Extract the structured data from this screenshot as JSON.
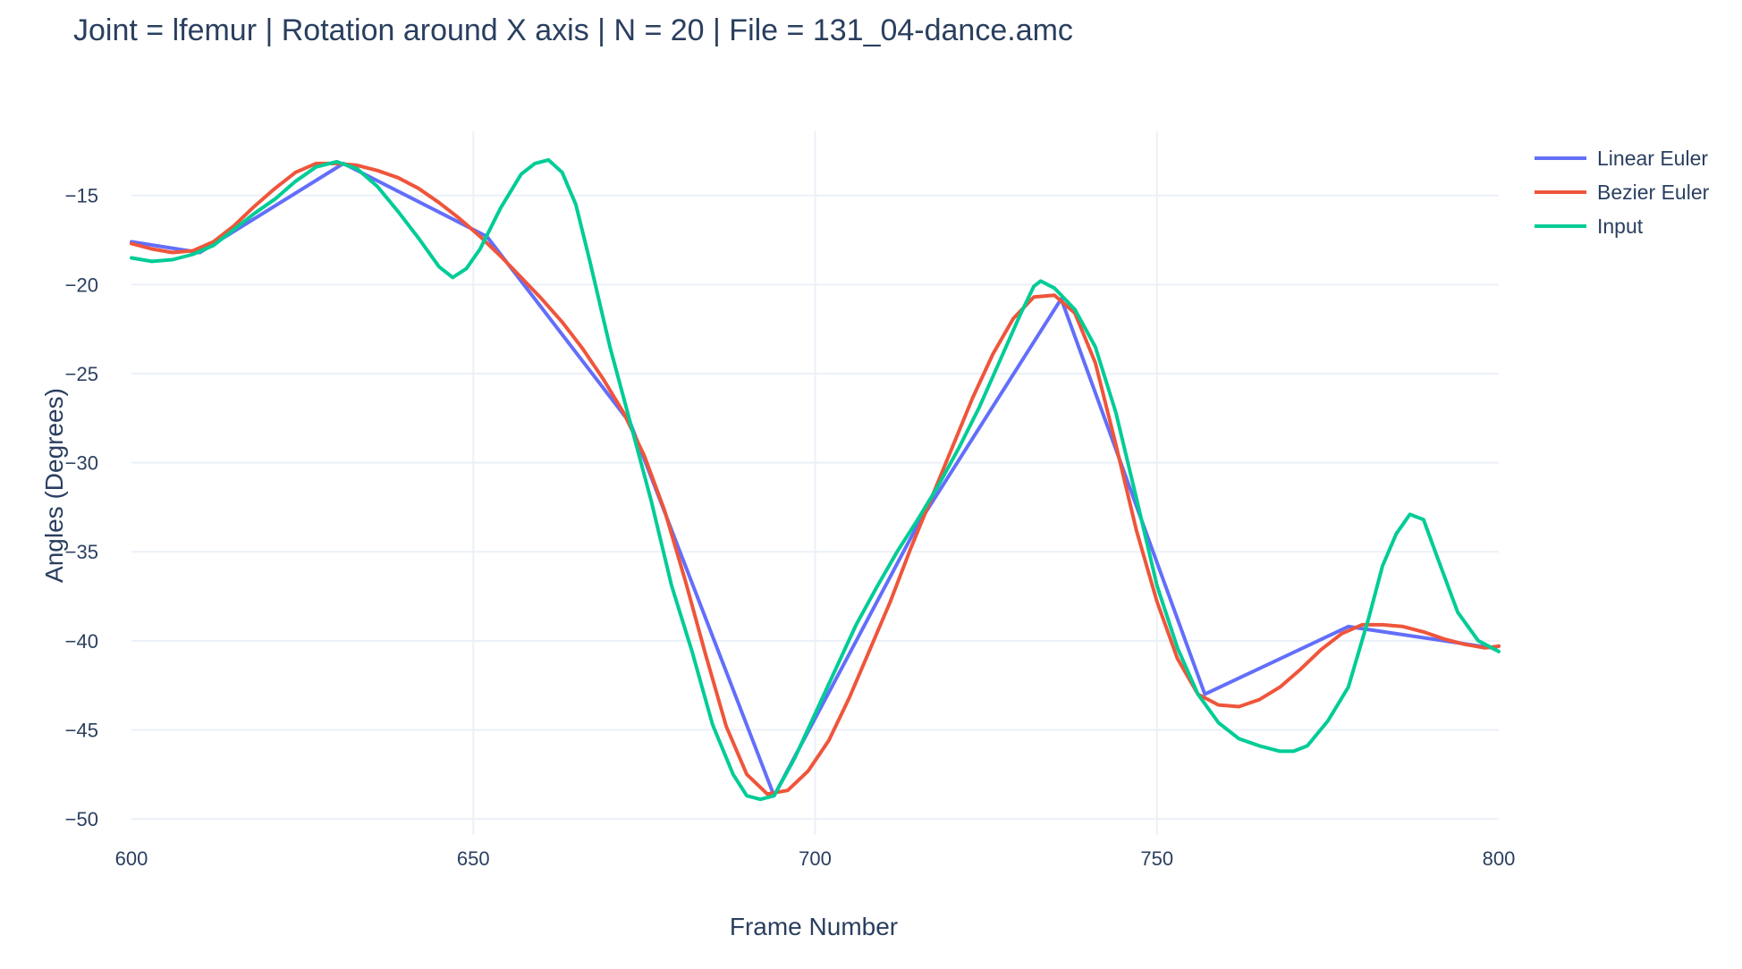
{
  "chart_data": {
    "type": "line",
    "title": "Joint = lfemur | Rotation around X axis | N = 20 | File = 131_04-dance.amc",
    "xlabel": "Frame Number",
    "ylabel": "Angles (Degrees)",
    "xlim": [
      600,
      800
    ],
    "ylim": [
      -50.9,
      -11.4
    ],
    "xticks": [
      600,
      650,
      700,
      750,
      800
    ],
    "yticks": [
      -15,
      -20,
      -25,
      -30,
      -35,
      -40,
      -45,
      -50
    ],
    "grid": true,
    "legend_position": "top-right",
    "series": [
      {
        "name": "Linear Euler",
        "color": "#636efa",
        "x": [
          600,
          610,
          631,
          652,
          673,
          694,
          715,
          736,
          757,
          778,
          799,
          800
        ],
        "y": [
          -17.6,
          -18.2,
          -13.2,
          -17.3,
          -27.8,
          -48.7,
          -33.5,
          -20.8,
          -43.0,
          -39.2,
          -40.4,
          -40.3
        ]
      },
      {
        "name": "Bezier Euler",
        "color": "#ef553b",
        "x": [
          600,
          603,
          606,
          609,
          612,
          615,
          618,
          621,
          624,
          627,
          630,
          633,
          636,
          639,
          642,
          645,
          648,
          651,
          654,
          657,
          660,
          663,
          666,
          669,
          672,
          675,
          678,
          681,
          684,
          687,
          690,
          693,
          696,
          699,
          702,
          705,
          708,
          711,
          714,
          717,
          720,
          723,
          726,
          729,
          732,
          735,
          738,
          741,
          744,
          747,
          750,
          753,
          756,
          759,
          762,
          765,
          768,
          771,
          774,
          777,
          780,
          783,
          786,
          789,
          792,
          795,
          798,
          800
        ],
        "y": [
          -17.7,
          -18.0,
          -18.2,
          -18.1,
          -17.6,
          -16.7,
          -15.6,
          -14.6,
          -13.7,
          -13.2,
          -13.2,
          -13.3,
          -13.6,
          -14.0,
          -14.6,
          -15.4,
          -16.3,
          -17.3,
          -18.4,
          -19.6,
          -20.8,
          -22.1,
          -23.6,
          -25.3,
          -27.2,
          -29.6,
          -32.7,
          -36.6,
          -40.8,
          -44.8,
          -47.5,
          -48.6,
          -48.4,
          -47.3,
          -45.6,
          -43.2,
          -40.5,
          -37.8,
          -34.8,
          -32.0,
          -29.2,
          -26.4,
          -23.9,
          -21.9,
          -20.7,
          -20.6,
          -21.6,
          -24.4,
          -29.0,
          -33.8,
          -37.8,
          -41.0,
          -43.0,
          -43.6,
          -43.7,
          -43.3,
          -42.6,
          -41.6,
          -40.5,
          -39.6,
          -39.1,
          -39.1,
          -39.2,
          -39.5,
          -39.9,
          -40.2,
          -40.4,
          -40.3
        ]
      },
      {
        "name": "Input",
        "color": "#00cc96",
        "x": [
          600,
          603,
          606,
          609,
          612,
          615,
          618,
          621,
          624,
          627,
          630,
          633,
          636,
          639,
          642,
          645,
          647,
          649,
          651,
          654,
          657,
          659,
          661,
          663,
          665,
          667,
          670,
          673,
          676,
          679,
          682,
          685,
          688,
          690,
          692,
          694,
          697,
          700,
          703,
          706,
          709,
          712,
          715,
          718,
          721,
          724,
          727,
          730,
          732,
          733,
          735,
          738,
          741,
          744,
          747,
          750,
          753,
          756,
          759,
          762,
          765,
          768,
          770,
          772,
          775,
          778,
          781,
          783,
          785,
          787,
          789,
          791,
          794,
          797,
          800
        ],
        "y": [
          -18.5,
          -18.7,
          -18.6,
          -18.3,
          -17.8,
          -16.9,
          -16.0,
          -15.2,
          -14.2,
          -13.4,
          -13.1,
          -13.5,
          -14.5,
          -15.9,
          -17.4,
          -19.0,
          -19.6,
          -19.1,
          -18.0,
          -15.7,
          -13.8,
          -13.2,
          -13.0,
          -13.7,
          -15.5,
          -18.6,
          -23.5,
          -27.8,
          -32.1,
          -36.9,
          -40.6,
          -44.7,
          -47.5,
          -48.7,
          -48.9,
          -48.7,
          -46.6,
          -44.1,
          -41.6,
          -39.1,
          -37.0,
          -35.0,
          -33.2,
          -31.3,
          -29.2,
          -26.9,
          -24.3,
          -21.7,
          -20.1,
          -19.8,
          -20.2,
          -21.4,
          -23.5,
          -27.2,
          -32.0,
          -36.9,
          -40.4,
          -43.0,
          -44.6,
          -45.5,
          -45.9,
          -46.2,
          -46.2,
          -45.9,
          -44.5,
          -42.6,
          -38.7,
          -35.8,
          -34.0,
          -32.9,
          -33.2,
          -35.3,
          -38.4,
          -40.0,
          -40.6
        ]
      }
    ]
  }
}
